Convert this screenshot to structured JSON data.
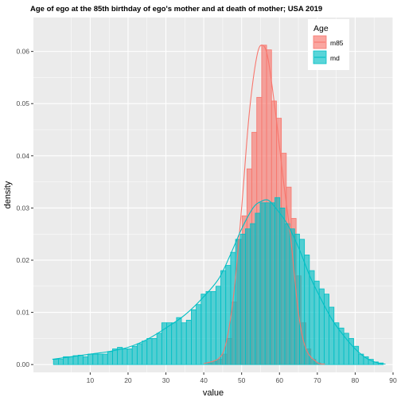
{
  "chart_data": {
    "type": "histogram",
    "title": "Age of ego at the 85th birthday of ego's mother and at death of mother;  USA 2019",
    "xlabel": "value",
    "ylabel": "density",
    "xlim": [
      -5,
      90
    ],
    "ylim": [
      -0.0015,
      0.0665
    ],
    "x_ticks": [
      10,
      20,
      30,
      40,
      50,
      60,
      70,
      80,
      90
    ],
    "y_ticks": [
      0.0,
      0.01,
      0.02,
      0.03,
      0.04,
      0.05,
      0.06
    ],
    "y_tick_labels": [
      "0.00",
      "0.01",
      "0.02",
      "0.03",
      "0.04",
      "0.05",
      "0.06"
    ],
    "grid": true,
    "legend": {
      "title": "Age",
      "placement": "top-right"
    },
    "bin_width": 1.3,
    "series": [
      {
        "name": "m85",
        "fill": "#F8766D",
        "line": "#F8766D",
        "bins": [
          {
            "x": 41.0,
            "y": 0.0003
          },
          {
            "x": 42.3,
            "y": 0.0006
          },
          {
            "x": 43.6,
            "y": 0.001
          },
          {
            "x": 44.9,
            "y": 0.002
          },
          {
            "x": 46.2,
            "y": 0.005
          },
          {
            "x": 47.5,
            "y": 0.012
          },
          {
            "x": 48.8,
            "y": 0.024
          },
          {
            "x": 50.1,
            "y": 0.0285
          },
          {
            "x": 51.4,
            "y": 0.0375
          },
          {
            "x": 52.7,
            "y": 0.0445
          },
          {
            "x": 54.0,
            "y": 0.0512
          },
          {
            "x": 55.3,
            "y": 0.0612
          },
          {
            "x": 56.6,
            "y": 0.0603
          },
          {
            "x": 57.9,
            "y": 0.0505
          },
          {
            "x": 59.2,
            "y": 0.0472
          },
          {
            "x": 60.5,
            "y": 0.0405
          },
          {
            "x": 61.8,
            "y": 0.034
          },
          {
            "x": 63.1,
            "y": 0.028
          },
          {
            "x": 64.4,
            "y": 0.017
          },
          {
            "x": 65.7,
            "y": 0.008
          },
          {
            "x": 67.0,
            "y": 0.003
          },
          {
            "x": 68.3,
            "y": 0.001
          },
          {
            "x": 69.6,
            "y": 0.0003
          }
        ],
        "density": [
          [
            40,
            0.0002
          ],
          [
            44,
            0.0012
          ],
          [
            46,
            0.0045
          ],
          [
            48,
            0.014
          ],
          [
            50,
            0.03
          ],
          [
            52,
            0.048
          ],
          [
            54,
            0.059
          ],
          [
            55.5,
            0.0612
          ],
          [
            57,
            0.0585
          ],
          [
            59,
            0.048
          ],
          [
            61,
            0.0355
          ],
          [
            63,
            0.024
          ],
          [
            65,
            0.01
          ],
          [
            67,
            0.003
          ],
          [
            70,
            0.0004
          ],
          [
            72,
            0.0001
          ]
        ]
      },
      {
        "name": "md",
        "fill": "#00BFC4",
        "line": "#00BFC4",
        "bins": [
          {
            "x": 0.3,
            "y": 0.001
          },
          {
            "x": 1.6,
            "y": 0.001
          },
          {
            "x": 2.9,
            "y": 0.0015
          },
          {
            "x": 4.2,
            "y": 0.0015
          },
          {
            "x": 5.5,
            "y": 0.0017
          },
          {
            "x": 6.8,
            "y": 0.0018
          },
          {
            "x": 8.1,
            "y": 0.0015
          },
          {
            "x": 9.4,
            "y": 0.002
          },
          {
            "x": 10.7,
            "y": 0.002
          },
          {
            "x": 12.0,
            "y": 0.002
          },
          {
            "x": 13.3,
            "y": 0.002
          },
          {
            "x": 14.6,
            "y": 0.0025
          },
          {
            "x": 15.9,
            "y": 0.003
          },
          {
            "x": 17.2,
            "y": 0.0033
          },
          {
            "x": 18.5,
            "y": 0.003
          },
          {
            "x": 19.8,
            "y": 0.003
          },
          {
            "x": 21.1,
            "y": 0.0035
          },
          {
            "x": 22.4,
            "y": 0.004
          },
          {
            "x": 23.7,
            "y": 0.0045
          },
          {
            "x": 25.0,
            "y": 0.005
          },
          {
            "x": 26.3,
            "y": 0.005
          },
          {
            "x": 27.6,
            "y": 0.006
          },
          {
            "x": 28.9,
            "y": 0.008
          },
          {
            "x": 30.2,
            "y": 0.008
          },
          {
            "x": 31.5,
            "y": 0.008
          },
          {
            "x": 32.8,
            "y": 0.009
          },
          {
            "x": 34.1,
            "y": 0.008
          },
          {
            "x": 35.4,
            "y": 0.0085
          },
          {
            "x": 36.7,
            "y": 0.0105
          },
          {
            "x": 38.0,
            "y": 0.0115
          },
          {
            "x": 39.3,
            "y": 0.0135
          },
          {
            "x": 40.6,
            "y": 0.014
          },
          {
            "x": 41.9,
            "y": 0.014
          },
          {
            "x": 43.2,
            "y": 0.015
          },
          {
            "x": 44.5,
            "y": 0.018
          },
          {
            "x": 45.8,
            "y": 0.019
          },
          {
            "x": 47.1,
            "y": 0.0215
          },
          {
            "x": 48.4,
            "y": 0.024
          },
          {
            "x": 49.7,
            "y": 0.025
          },
          {
            "x": 51.0,
            "y": 0.026
          },
          {
            "x": 52.3,
            "y": 0.027
          },
          {
            "x": 53.6,
            "y": 0.029
          },
          {
            "x": 54.9,
            "y": 0.031
          },
          {
            "x": 56.2,
            "y": 0.031
          },
          {
            "x": 57.5,
            "y": 0.031
          },
          {
            "x": 58.8,
            "y": 0.032
          },
          {
            "x": 60.1,
            "y": 0.03
          },
          {
            "x": 61.4,
            "y": 0.027
          },
          {
            "x": 62.7,
            "y": 0.026
          },
          {
            "x": 64.0,
            "y": 0.025
          },
          {
            "x": 65.3,
            "y": 0.024
          },
          {
            "x": 66.6,
            "y": 0.021
          },
          {
            "x": 67.9,
            "y": 0.018
          },
          {
            "x": 69.2,
            "y": 0.016
          },
          {
            "x": 70.5,
            "y": 0.0145
          },
          {
            "x": 71.8,
            "y": 0.0135
          },
          {
            "x": 73.1,
            "y": 0.011
          },
          {
            "x": 74.4,
            "y": 0.008
          },
          {
            "x": 75.7,
            "y": 0.007
          },
          {
            "x": 77.0,
            "y": 0.006
          },
          {
            "x": 78.3,
            "y": 0.005
          },
          {
            "x": 79.6,
            "y": 0.0035
          },
          {
            "x": 80.9,
            "y": 0.002
          },
          {
            "x": 82.2,
            "y": 0.0015
          },
          {
            "x": 83.5,
            "y": 0.001
          },
          {
            "x": 84.8,
            "y": 0.0005
          },
          {
            "x": 86.1,
            "y": 0.0003
          }
        ],
        "density": [
          [
            0,
            0.001
          ],
          [
            5,
            0.0015
          ],
          [
            10,
            0.002
          ],
          [
            15,
            0.0025
          ],
          [
            20,
            0.0033
          ],
          [
            25,
            0.0048
          ],
          [
            30,
            0.007
          ],
          [
            35,
            0.0095
          ],
          [
            40,
            0.013
          ],
          [
            44,
            0.0165
          ],
          [
            47,
            0.021
          ],
          [
            50,
            0.026
          ],
          [
            53,
            0.03
          ],
          [
            55,
            0.0312
          ],
          [
            57,
            0.0315
          ],
          [
            59,
            0.03
          ],
          [
            62,
            0.027
          ],
          [
            65,
            0.0225
          ],
          [
            68,
            0.017
          ],
          [
            71,
            0.0125
          ],
          [
            74,
            0.0085
          ],
          [
            77,
            0.0055
          ],
          [
            80,
            0.003
          ],
          [
            83,
            0.0012
          ],
          [
            86,
            0.0003
          ],
          [
            88,
            0.0001
          ]
        ]
      }
    ]
  }
}
